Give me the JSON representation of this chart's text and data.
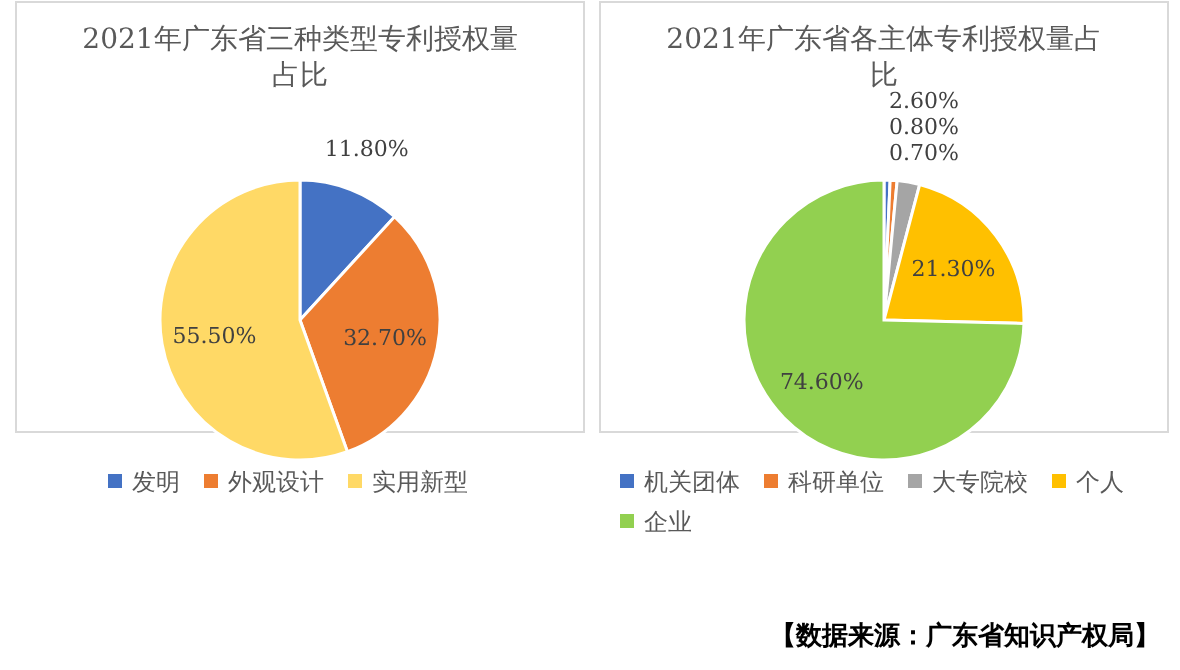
{
  "chart_data": [
    {
      "type": "pie",
      "title": "2021年广东省三种类型专利授权量占比",
      "categories": [
        "发明",
        "外观设计",
        "实用新型"
      ],
      "values": [
        11.8,
        32.7,
        55.5
      ],
      "colors": [
        "#4472c4",
        "#ed7d31",
        "#ffd966"
      ],
      "value_labels": [
        "11.80%",
        "32.70%",
        "55.50%"
      ],
      "legend": "bottom"
    },
    {
      "type": "pie",
      "title": "2021年广东省各主体专利授权量占比",
      "categories": [
        "机关团体",
        "科研单位",
        "大专院校",
        "个人",
        "企业"
      ],
      "values": [
        0.7,
        0.8,
        2.6,
        21.3,
        74.6
      ],
      "colors": [
        "#4472c4",
        "#ed7d31",
        "#a5a5a5",
        "#ffc000",
        "#92d050"
      ],
      "value_labels": [
        "0.70%",
        "0.80%",
        "2.60%",
        "21.30%",
        "74.60%"
      ],
      "legend": "bottom",
      "annotations": [
        "【数据来源：广东省知识产权局】"
      ]
    }
  ]
}
